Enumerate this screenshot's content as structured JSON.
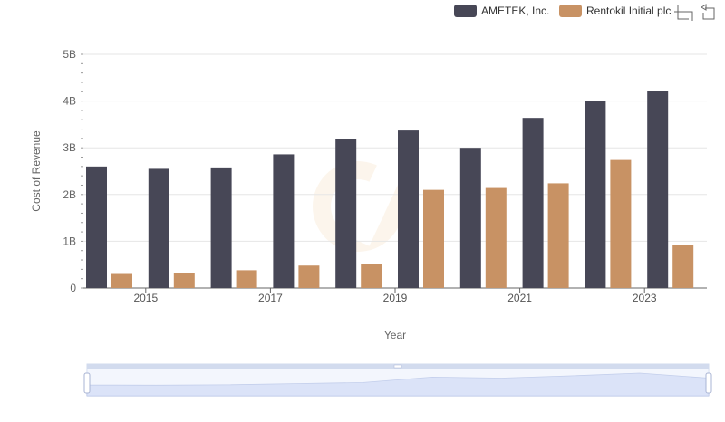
{
  "chart_data": {
    "type": "bar",
    "title": "",
    "xlabel": "Year",
    "ylabel": "Cost of Revenue",
    "x": [
      2014,
      2015,
      2016,
      2017,
      2018,
      2019,
      2020,
      2021,
      2022,
      2023
    ],
    "x_tick_labels": [
      "2015",
      "2017",
      "2019",
      "2021",
      "2023"
    ],
    "y_tick_labels": [
      "0",
      "1B",
      "2B",
      "3B",
      "4B",
      "5B"
    ],
    "ylim": [
      0,
      5000000000
    ],
    "grid": true,
    "legend_position": "top-right",
    "series": [
      {
        "name": "AMETEK, Inc.",
        "color": "#474756",
        "values": [
          2600000000,
          2550000000,
          2580000000,
          2860000000,
          3190000000,
          3370000000,
          3000000000,
          3640000000,
          4010000000,
          4220000000
        ]
      },
      {
        "name": "Rentokil Initial plc",
        "color": "#c89264",
        "values": [
          300000000,
          310000000,
          380000000,
          480000000,
          520000000,
          2100000000,
          2140000000,
          2240000000,
          2740000000,
          930000000
        ]
      }
    ]
  },
  "toolbar": {
    "zoom_icon": "zoom-select-icon",
    "restore_icon": "zoom-restore-icon"
  }
}
